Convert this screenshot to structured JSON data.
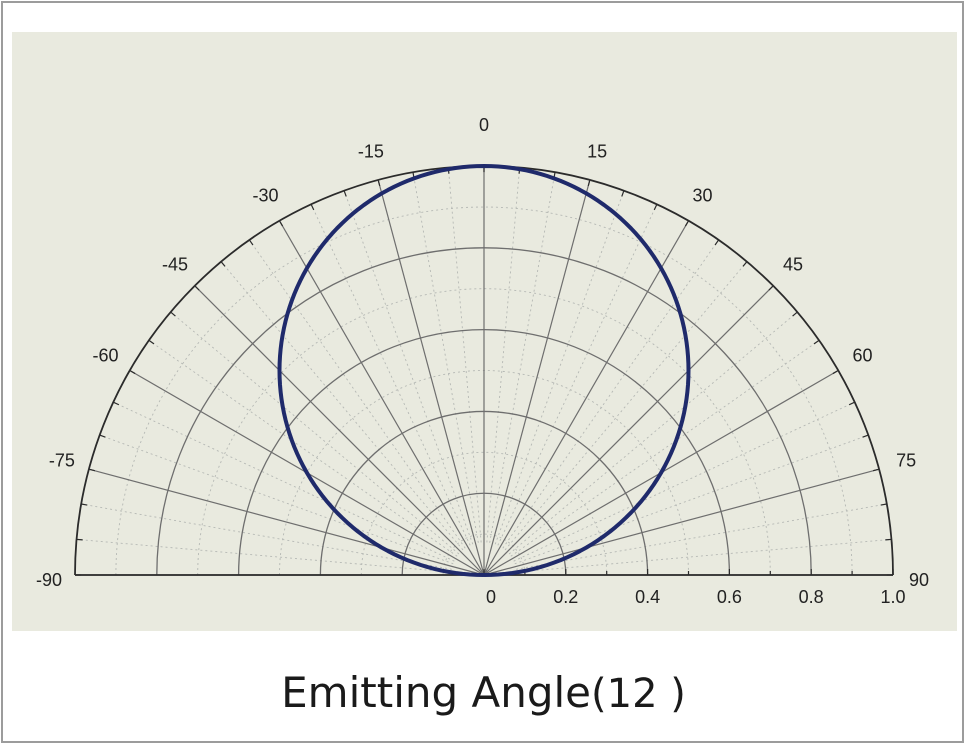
{
  "chart_data": {
    "type": "polar",
    "title": "",
    "angle_ticks": [
      "-90",
      "-75",
      "-60",
      "-45",
      "-30",
      "-15",
      "0",
      "15",
      "30",
      "45",
      "60",
      "75",
      "90"
    ],
    "angles_deg": [
      -90,
      -75,
      -60,
      -45,
      -30,
      -15,
      0,
      15,
      30,
      45,
      60,
      75,
      90
    ],
    "radial_ticks": [
      "0",
      "0.2",
      "0.4",
      "0.6",
      "0.8",
      "1.0"
    ],
    "radial_values": [
      0,
      0.2,
      0.4,
      0.6,
      0.8,
      1.0
    ],
    "rlim": [
      0,
      1.0
    ],
    "angle_range_deg": [
      -90,
      90
    ],
    "grid": true,
    "series": [
      {
        "pattern": "cosine",
        "theta_deg": [
          -90,
          -75,
          -60,
          -45,
          -30,
          -15,
          0,
          15,
          30,
          45,
          60,
          75,
          90
        ],
        "r": [
          0,
          0.26,
          0.5,
          0.71,
          0.87,
          0.97,
          1.0,
          0.97,
          0.87,
          0.71,
          0.5,
          0.26,
          0
        ],
        "color": "#1f2a6b"
      }
    ],
    "colors": {
      "background": "#e9eadf",
      "grid": "#6e6e6e",
      "curve": "#1f2a6b"
    }
  },
  "caption": {
    "main": "Emitting Angle",
    "paren": "(12 )"
  }
}
